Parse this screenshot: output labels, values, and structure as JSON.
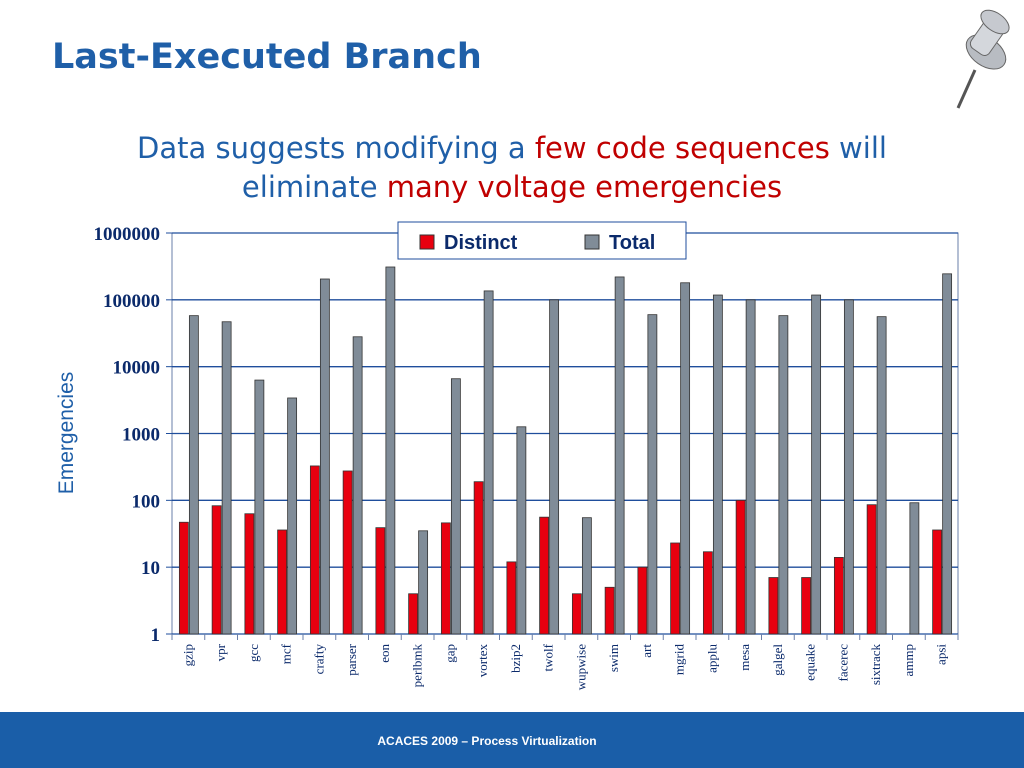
{
  "slide": {
    "title": "Last-Executed Branch",
    "subtitle_lines": [
      [
        {
          "text": "Data suggests modifying a ",
          "color": "#1f5fa8"
        },
        {
          "text": "few code sequences",
          "color": "#c00000"
        },
        {
          "text": " will",
          "color": "#1f5fa8"
        }
      ],
      [
        {
          "text": "eliminate ",
          "color": "#1f5fa8"
        },
        {
          "text": "many voltage emergencies",
          "color": "#c00000"
        }
      ]
    ],
    "footer": "ACACES 2009 – Process Virtualization"
  },
  "chart_data": {
    "type": "bar",
    "log_scale": true,
    "grid": true,
    "legend": "upper center",
    "ylabel": "Emergencies",
    "categories": [
      "gzip",
      "vpr",
      "gcc",
      "mcf",
      "crafty",
      "parser",
      "eon",
      "perlbmk",
      "gap",
      "vortex",
      "bzip2",
      "twolf",
      "wupwise",
      "swim",
      "art",
      "mgrid",
      "applu",
      "mesa",
      "galgel",
      "equake",
      "facerec",
      "sixtrack",
      "ammp",
      "apsi"
    ],
    "series": [
      {
        "name": "Distinct",
        "color": "#e8000f",
        "values": [
          47,
          83,
          63,
          36,
          327,
          275,
          39,
          4,
          46,
          190,
          12,
          56,
          4,
          5,
          10,
          23,
          17,
          100,
          7,
          7,
          14,
          86,
          null,
          36
        ]
      },
      {
        "name": "Total",
        "color": "#808c98",
        "values": [
          58000,
          47000,
          6300,
          3400,
          205000,
          28000,
          310000,
          35,
          6600,
          136000,
          1260,
          100000,
          55,
          220000,
          60000,
          180000,
          118000,
          100000,
          58000,
          118000,
          100000,
          56000,
          92,
          245000
        ]
      }
    ],
    "ylim": [
      1,
      1000000
    ],
    "yticks": [
      1,
      10,
      100,
      1000,
      10000,
      100000,
      1000000
    ]
  }
}
